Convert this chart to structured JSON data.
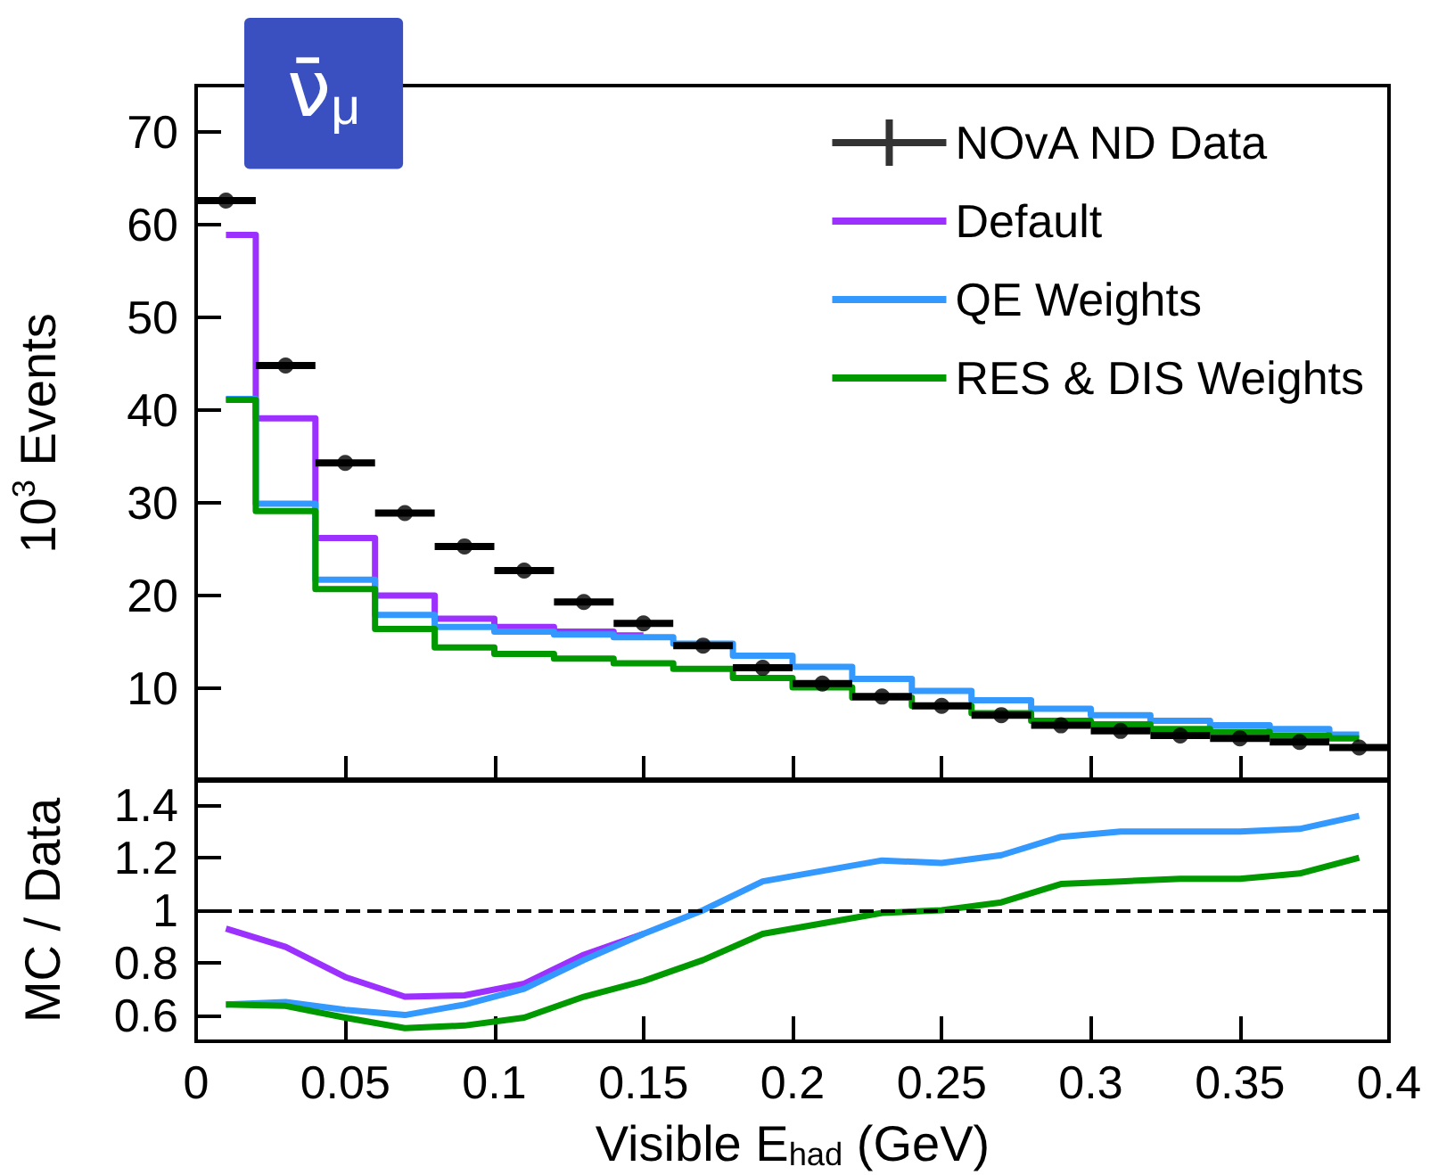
{
  "chart_data": [
    {
      "type": "step",
      "ylabel": "10$^{3}$ Events",
      "annotations": [
        "ν̄$_{μ}$"
      ],
      "x": [
        0.01,
        0.03,
        0.05,
        0.07,
        0.09,
        0.11,
        0.13,
        0.15,
        0.17,
        0.19,
        0.21,
        0.23,
        0.25,
        0.27,
        0.29,
        0.31,
        0.33,
        0.35,
        0.37,
        0.39
      ],
      "xlim": [
        0,
        0.4
      ],
      "xticks": [
        0,
        0.05,
        0.1,
        0.15,
        0.2,
        0.25,
        0.3,
        0.35,
        0.4
      ],
      "ylim": [
        0,
        75
      ],
      "yticks": [
        10,
        20,
        30,
        40,
        50,
        60,
        70
      ],
      "tick_labels": "y",
      "legend": "top right",
      "series": [
        {
          "name": "NOvA ND Data",
          "type": "scatter",
          "marker": "circle",
          "color": "#000000",
          "x": [
            0.01,
            0.03,
            0.05,
            0.07,
            0.09,
            0.11,
            0.13,
            0.15,
            0.17,
            0.19,
            0.21,
            0.23,
            0.25,
            0.27,
            0.29,
            0.31,
            0.33,
            0.35,
            0.37,
            0.39
          ],
          "values": [
            62.6,
            44.8,
            34.3,
            28.9,
            25.3,
            22.7,
            19.3,
            17.0,
            14.6,
            12.2,
            10.5,
            9.1,
            8.1,
            7.1,
            6.0,
            5.4,
            4.9,
            4.6,
            4.2,
            3.6
          ],
          "xerrors": [
            0.01,
            0.01,
            0.01,
            0.01,
            0.01,
            0.01,
            0.01,
            0.01,
            0.01,
            0.01,
            0.01,
            0.01,
            0.01,
            0.01,
            0.01,
            0.01,
            0.01,
            0.01,
            0.01,
            0.01
          ]
        },
        {
          "name": "Default",
          "color": "#9b30ff",
          "values": [
            58.9,
            39.1,
            26.2,
            20.0,
            17.5,
            16.6,
            16.1,
            15.7,
            null,
            null,
            null,
            null,
            null,
            null,
            null,
            null,
            null,
            null,
            null,
            null
          ]
        },
        {
          "name": "QE Weights",
          "color": "#3399ff",
          "values": [
            41.2,
            29.9,
            21.7,
            17.9,
            16.6,
            16.1,
            15.8,
            15.5,
            14.8,
            13.5,
            12.3,
            11.0,
            9.7,
            8.7,
            7.8,
            7.1,
            6.5,
            6.0,
            5.6,
            5.0
          ]
        },
        {
          "name": "RES & DIS Weights",
          "color": "#009900",
          "values": [
            41.1,
            29.1,
            20.7,
            16.4,
            14.4,
            13.7,
            13.2,
            12.7,
            12.1,
            11.1,
            10.1,
            9.0,
            8.1,
            7.3,
            6.5,
            6.1,
            5.6,
            5.3,
            4.9,
            4.6
          ]
        }
      ]
    },
    {
      "type": "line",
      "xlabel": "Visible E$_{had}$ (GeV)",
      "ylabel": "MC / Data",
      "marker": "none",
      "x": [
        0.01,
        0.03,
        0.05,
        0.07,
        0.09,
        0.11,
        0.13,
        0.15,
        0.17,
        0.19,
        0.21,
        0.23,
        0.25,
        0.27,
        0.29,
        0.31,
        0.33,
        0.35,
        0.37,
        0.39
      ],
      "xlim": [
        0,
        0.4
      ],
      "xticks": [
        0,
        0.05,
        0.1,
        0.15,
        0.2,
        0.25,
        0.3,
        0.35,
        0.4
      ],
      "ylim": [
        0.5,
        1.5
      ],
      "yticks": [
        0.6,
        0.8,
        1,
        1.2,
        1.4
      ],
      "ref_lines": [
        {
          "axis": "y",
          "value": 1,
          "color": "#000000",
          "line_style": "dashed"
        }
      ],
      "series": [
        {
          "color": "#9b30ff",
          "values": [
            0.93,
            0.86,
            0.745,
            0.67,
            0.675,
            0.72,
            0.83,
            0.91,
            null,
            null,
            null,
            null,
            null,
            null,
            null,
            null,
            null,
            null,
            null,
            null
          ]
        },
        {
          "color": "#3399ff",
          "values": [
            0.64,
            0.65,
            0.62,
            0.6,
            0.64,
            0.7,
            0.81,
            0.91,
            1.0,
            1.11,
            1.15,
            1.19,
            1.18,
            1.21,
            1.28,
            1.3,
            1.3,
            1.3,
            1.31,
            1.36
          ]
        },
        {
          "color": "#009900",
          "values": [
            0.64,
            0.635,
            0.59,
            0.55,
            0.56,
            0.59,
            0.67,
            0.73,
            0.81,
            0.91,
            0.95,
            0.99,
            1.0,
            1.03,
            1.1,
            1.11,
            1.12,
            1.12,
            1.14,
            1.2
          ]
        }
      ]
    }
  ]
}
